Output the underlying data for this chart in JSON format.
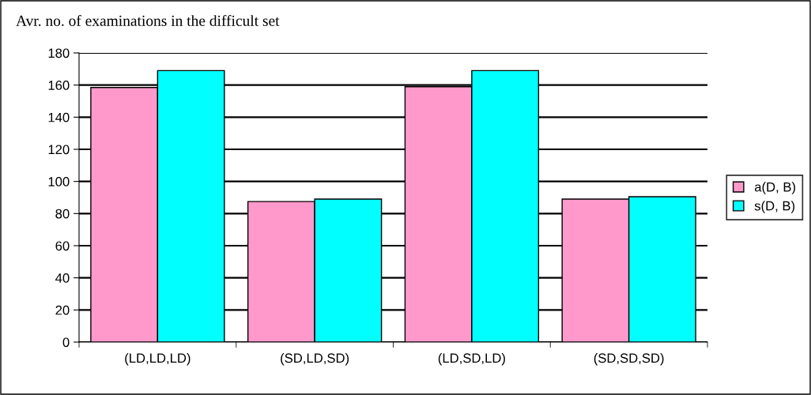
{
  "chart_data": {
    "type": "bar",
    "title": "Avr. no. of examinations in the difficult set",
    "categories": [
      "(LD,LD,LD)",
      "(SD,LD,SD)",
      "(LD,SD,LD)",
      "(SD,SD,SD)"
    ],
    "series": [
      {
        "name": "a(D, B)",
        "color": "#ff99cc",
        "values": [
          158.5,
          87.5,
          159,
          89
        ]
      },
      {
        "name": "s(D, B)",
        "color": "#00ffff",
        "values": [
          169,
          89,
          169,
          90.5
        ]
      }
    ],
    "ylim": [
      0,
      180
    ],
    "yticks": [
      0,
      20,
      40,
      60,
      80,
      100,
      120,
      140,
      160,
      180
    ],
    "grid": "y",
    "legend": "right"
  }
}
